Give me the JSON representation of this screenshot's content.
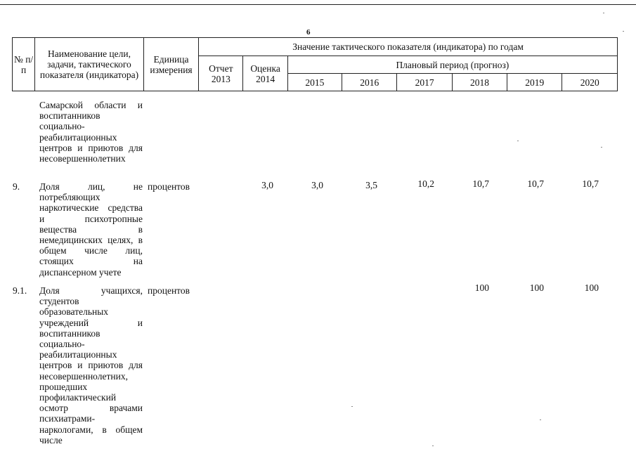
{
  "page_number": "6",
  "header": {
    "num": "№ п/п",
    "name": "Наименование цели, задачи, тактического показателя (индикатора)",
    "unit": "Единица измерения",
    "group": "Значение тактического показателя (индикатора) по годам",
    "report": "Отчет 2013",
    "estimate": "Оценка 2014",
    "plan": "Плановый период (прогноз)",
    "years": [
      "2015",
      "2016",
      "2017",
      "2018",
      "2019",
      "2020"
    ]
  },
  "rows": [
    {
      "num": "",
      "name": "Самарской области и воспитанников социально-реабилитационных центров и приютов для несовершеннолетних",
      "unit": "",
      "values": [
        "",
        "",
        "",
        "",
        "",
        "",
        "",
        ""
      ]
    },
    {
      "num": "9.",
      "name": "Доля лиц, не потребляющих наркотические средства и психотропные вещества в немедицинских целях, в общем числе лиц, стоящих на диспансерном учете",
      "unit": "процентов",
      "values": [
        "",
        "3,0",
        "3,0",
        "3,5",
        "10,2",
        "10,7",
        "10,7",
        "10,7"
      ]
    },
    {
      "num": "9.1.",
      "name": "Доля учащихся, студентов образовательных учреждений и воспитанников социально-реабилитационных центров и приютов для несовершеннолетних, прошедших профилактический осмотр врачами психиатрами-наркологами, в общем числе",
      "unit": "процентов",
      "values": [
        "",
        "",
        "",
        "",
        "",
        "100",
        "100",
        "100"
      ]
    }
  ]
}
